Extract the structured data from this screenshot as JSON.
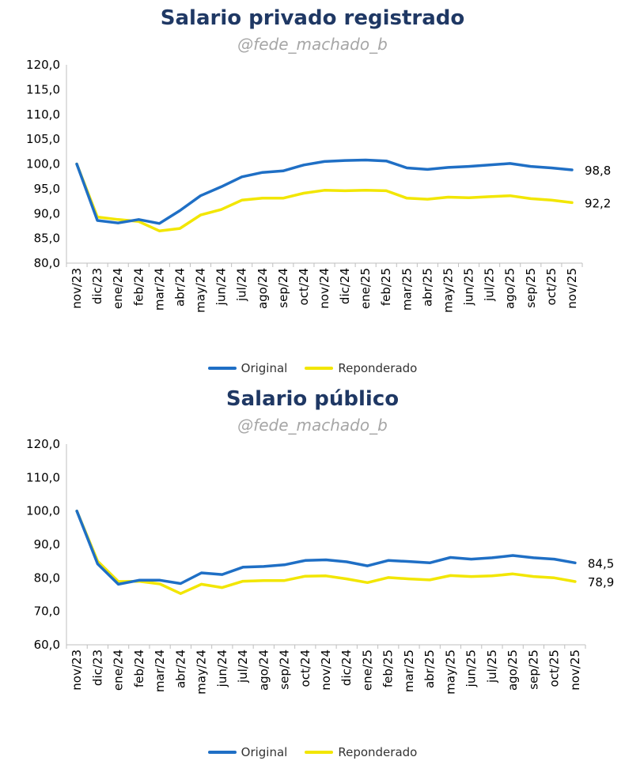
{
  "chart_data": [
    {
      "type": "line",
      "title": "Salario privado registrado",
      "subtitle": "@fede_machado_b",
      "categories": [
        "nov/23",
        "dic/23",
        "ene/24",
        "feb/24",
        "mar/24",
        "abr/24",
        "may/24",
        "jun/24",
        "jul/24",
        "ago/24",
        "sep/24",
        "oct/24",
        "nov/24",
        "dic/24",
        "ene/25",
        "feb/25",
        "mar/25",
        "abr/25",
        "may/25",
        "jun/25",
        "jul/25",
        "ago/25",
        "sep/25",
        "oct/25",
        "nov/25"
      ],
      "ylim": [
        80,
        120
      ],
      "yticks": [
        80,
        85,
        90,
        95,
        100,
        105,
        110,
        115,
        120
      ],
      "series": [
        {
          "name": "Original",
          "color": "#1F6FC5",
          "end_label": "98,8",
          "values": [
            100,
            88.6,
            88.1,
            88.8,
            88.0,
            90.6,
            93.6,
            95.4,
            97.4,
            98.3,
            98.6,
            99.8,
            100.5,
            100.7,
            100.8,
            100.6,
            99.2,
            98.9,
            99.3,
            99.5,
            99.8,
            100.1,
            99.5,
            99.2,
            98.8
          ]
        },
        {
          "name": "Reponderado",
          "color": "#F2E600",
          "end_label": "92,2",
          "values": [
            100,
            89.3,
            88.8,
            88.4,
            86.5,
            87.0,
            89.7,
            90.8,
            92.7,
            93.1,
            93.1,
            94.1,
            94.7,
            94.6,
            94.7,
            94.6,
            93.1,
            92.9,
            93.3,
            93.2,
            93.4,
            93.6,
            93.0,
            92.7,
            92.2
          ]
        }
      ]
    },
    {
      "type": "line",
      "title": "Salario público",
      "subtitle": "@fede_machado_b",
      "categories": [
        "nov/23",
        "dic/23",
        "ene/24",
        "feb/24",
        "mar/24",
        "abr/24",
        "may/24",
        "jun/24",
        "jul/24",
        "ago/24",
        "sep/24",
        "oct/24",
        "nov/24",
        "dic/24",
        "ene/25",
        "feb/25",
        "mar/25",
        "abr/25",
        "may/25",
        "jun/25",
        "jul/25",
        "ago/25",
        "sep/25",
        "oct/25",
        "nov/25"
      ],
      "ylim": [
        60,
        120
      ],
      "yticks": [
        60,
        70,
        80,
        90,
        100,
        110,
        120
      ],
      "series": [
        {
          "name": "Original",
          "color": "#1F6FC5",
          "end_label": "84,5",
          "values": [
            100,
            84.2,
            78.1,
            79.3,
            79.3,
            78.3,
            81.5,
            81.0,
            83.2,
            83.4,
            83.9,
            85.2,
            85.4,
            84.8,
            83.6,
            85.2,
            84.9,
            84.5,
            86.1,
            85.6,
            86.0,
            86.7,
            86.0,
            85.6,
            84.5
          ]
        },
        {
          "name": "Reponderado",
          "color": "#F2E600",
          "end_label": "78,9",
          "values": [
            100,
            85.0,
            78.9,
            79.0,
            78.2,
            75.3,
            78.1,
            77.1,
            79.0,
            79.2,
            79.2,
            80.5,
            80.6,
            79.7,
            78.6,
            80.1,
            79.7,
            79.4,
            80.7,
            80.4,
            80.6,
            81.2,
            80.4,
            80.0,
            78.9
          ]
        }
      ]
    }
  ]
}
